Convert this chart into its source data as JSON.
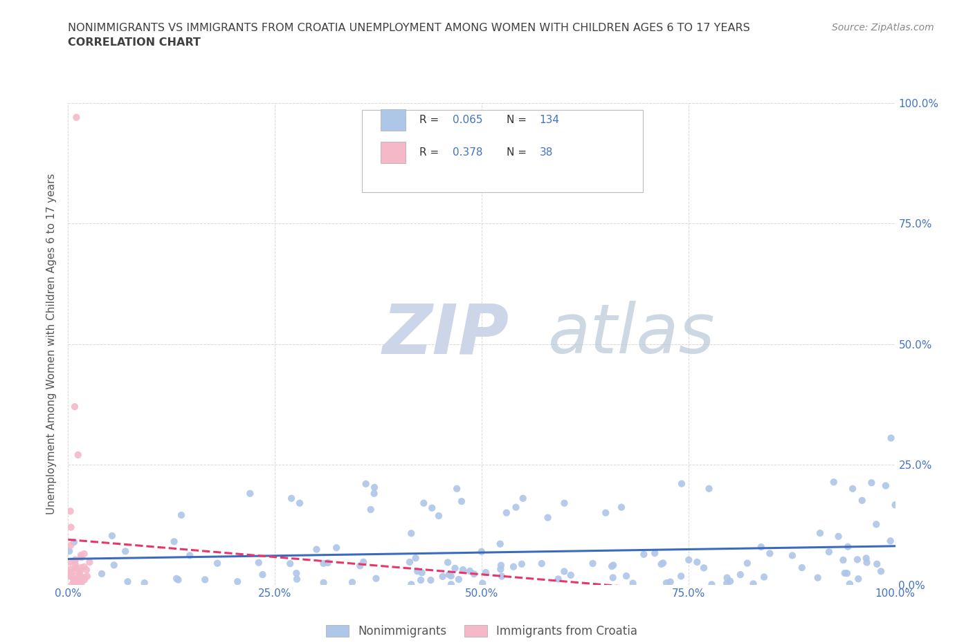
{
  "title_line1": "NONIMMIGRANTS VS IMMIGRANTS FROM CROATIA UNEMPLOYMENT AMONG WOMEN WITH CHILDREN AGES 6 TO 17 YEARS",
  "title_line2": "CORRELATION CHART",
  "source_text": "Source: ZipAtlas.com",
  "ylabel": "Unemployment Among Women with Children Ages 6 to 17 years",
  "xlim": [
    0,
    1
  ],
  "ylim": [
    0,
    1
  ],
  "xticks": [
    0.0,
    0.25,
    0.5,
    0.75,
    1.0
  ],
  "yticks": [
    0.0,
    0.25,
    0.5,
    0.75,
    1.0
  ],
  "xticklabels": [
    "0.0%",
    "25.0%",
    "50.0%",
    "75.0%",
    "100.0%"
  ],
  "yticklabels": [
    "0.0%",
    "25.0%",
    "50.0%",
    "75.0%",
    "100.0%"
  ],
  "nonimmigrant_color": "#aec6e8",
  "immigrant_color": "#f4b8c8",
  "trendline_nonimmigrant_color": "#3a6bbf",
  "trendline_immigrant_color": "#e8366a",
  "R_nonimmigrant": 0.065,
  "N_nonimmigrant": 134,
  "R_immigrant": 0.378,
  "N_immigrant": 38,
  "legend_R_color": "#4472c4",
  "legend_N_color": "#4472c4",
  "watermark_zip": "ZIP",
  "watermark_atlas": "atlas",
  "watermark_color": "#cdd5e8",
  "background_color": "#ffffff",
  "grid_color": "#d0d0d0",
  "title_color": "#404040",
  "axis_tick_color": "#4472c4",
  "ylabel_color": "#555555"
}
